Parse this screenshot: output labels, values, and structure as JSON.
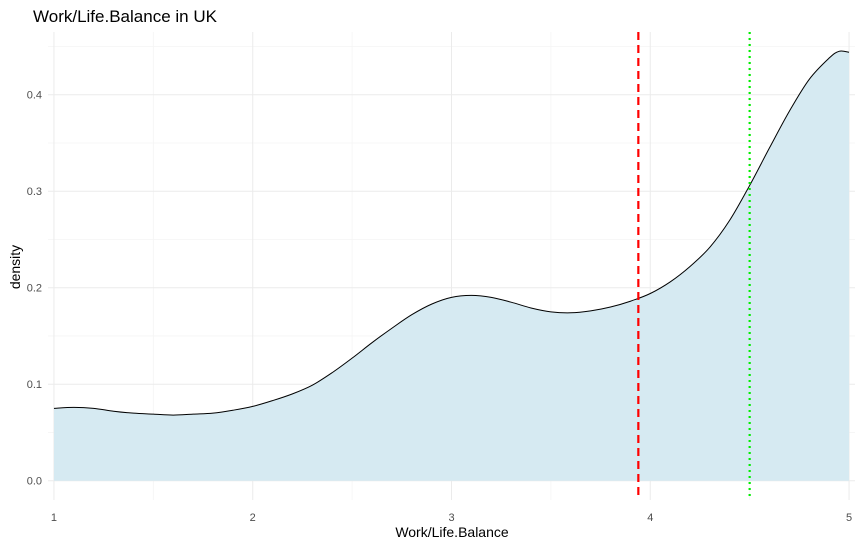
{
  "chart_data": {
    "type": "area",
    "title": "Work/Life.Balance in UK",
    "xlabel": "Work/Life.Balance",
    "ylabel": "density",
    "xlim": [
      0.97,
      5.03
    ],
    "ylim": [
      -0.02,
      0.465
    ],
    "x_ticks": [
      1,
      2,
      3,
      4,
      5
    ],
    "x_tick_labels": [
      "1",
      "2",
      "3",
      "4",
      "5"
    ],
    "y_ticks": [
      0.0,
      0.1,
      0.2,
      0.3,
      0.4
    ],
    "y_tick_labels": [
      "0.0",
      "0.1",
      "0.2",
      "0.3",
      "0.4"
    ],
    "grid": true,
    "fill_color": "#d6eaf2",
    "line_color": "#000000",
    "series": [
      {
        "x": [
          1.0,
          1.1,
          1.2,
          1.3,
          1.4,
          1.5,
          1.6,
          1.7,
          1.8,
          1.9,
          2.0,
          2.1,
          2.2,
          2.3,
          2.4,
          2.5,
          2.6,
          2.7,
          2.8,
          2.9,
          3.0,
          3.1,
          3.2,
          3.3,
          3.4,
          3.5,
          3.6,
          3.7,
          3.8,
          3.9,
          4.0,
          4.1,
          4.2,
          4.3,
          4.4,
          4.5,
          4.6,
          4.7,
          4.8,
          4.9,
          4.95,
          5.0
        ],
        "y": [
          0.075,
          0.076,
          0.075,
          0.072,
          0.07,
          0.069,
          0.068,
          0.069,
          0.07,
          0.073,
          0.077,
          0.083,
          0.09,
          0.099,
          0.112,
          0.127,
          0.143,
          0.158,
          0.172,
          0.183,
          0.19,
          0.192,
          0.19,
          0.185,
          0.179,
          0.175,
          0.174,
          0.176,
          0.18,
          0.186,
          0.194,
          0.206,
          0.222,
          0.242,
          0.27,
          0.306,
          0.345,
          0.383,
          0.416,
          0.438,
          0.445,
          0.444
        ]
      }
    ],
    "reference_lines": [
      {
        "x": 3.94,
        "style": "dashed",
        "color": "#ff0000"
      },
      {
        "x": 4.5,
        "style": "dotted",
        "color": "#00ee00"
      }
    ]
  }
}
